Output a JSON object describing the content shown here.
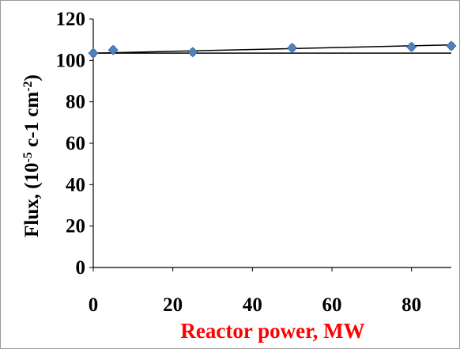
{
  "chart_data": {
    "type": "scatter",
    "title": "",
    "xlabel": "Reactor power, MW",
    "xlabel_color": "#ff0000",
    "ylabel": {
      "prefix": "Flux, (10",
      "sup1": "-5",
      "middle": " c-1 cm",
      "sup2": "-2",
      "suffix": ")"
    },
    "xlim": [
      0,
      90
    ],
    "ylim": [
      0,
      120
    ],
    "x_ticks": [
      0,
      20,
      40,
      60,
      80
    ],
    "y_ticks": [
      0,
      20,
      40,
      60,
      80,
      100,
      120
    ],
    "grid": false,
    "legend": "none",
    "series": [
      {
        "marker": "diamond",
        "color": "#4f81bd",
        "x": [
          0,
          5,
          25,
          50,
          80,
          90
        ],
        "y": [
          103.5,
          105,
          104,
          106,
          106.5,
          107
        ],
        "y_err": [
          1.5,
          1.5,
          1.5,
          1.5,
          1.5,
          1.5
        ]
      }
    ],
    "lines": [
      {
        "kind": "trend",
        "x": [
          0,
          90
        ],
        "y": [
          103.5,
          107.5
        ],
        "color": "#000000"
      },
      {
        "kind": "constant",
        "x": [
          0,
          90
        ],
        "y": [
          103.5,
          103.5
        ],
        "color": "#000000"
      }
    ]
  }
}
